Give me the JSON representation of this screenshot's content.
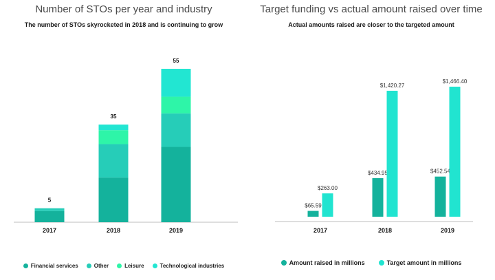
{
  "chart_data": [
    {
      "type": "bar",
      "stacked": true,
      "title": "Number of STOs per year and industry",
      "subtitle": "The number of STOs skyrocketed in 2018 and is continuing to grow",
      "categories": [
        "2017",
        "2018",
        "2019"
      ],
      "totals": [
        "5",
        "35",
        "55"
      ],
      "series": [
        {
          "name": "Financial services",
          "color": "#14b29c",
          "values": [
            4,
            16,
            27
          ]
        },
        {
          "name": "Other",
          "color": "#26cdb8",
          "values": [
            1,
            12,
            12
          ]
        },
        {
          "name": "Leisure",
          "color": "#2ef5a8",
          "values": [
            0,
            5,
            6
          ]
        },
        {
          "name": "Technological industries",
          "color": "#22e6d2",
          "values": [
            0,
            2,
            10
          ]
        }
      ],
      "ylim": [
        0,
        55
      ]
    },
    {
      "type": "bar",
      "title": "Target funding vs actual amount raised over time",
      "subtitle": "Actual amounts raised are closer to the targeted amount",
      "categories": [
        "2017",
        "2018",
        "2019"
      ],
      "series": [
        {
          "name": "Amount raised in millions",
          "color": "#14b29c",
          "values": [
            65.59,
            434.95,
            452.54
          ],
          "labels": [
            "$65.59",
            "$434.95",
            "$452.54"
          ]
        },
        {
          "name": "Target amount in millions",
          "color": "#21e4d0",
          "values": [
            263.0,
            1420.27,
            1466.4
          ],
          "labels": [
            "$263.00",
            "$1,420.27",
            "$1,466.40"
          ]
        }
      ],
      "ylim": [
        0,
        1466.4
      ]
    }
  ]
}
